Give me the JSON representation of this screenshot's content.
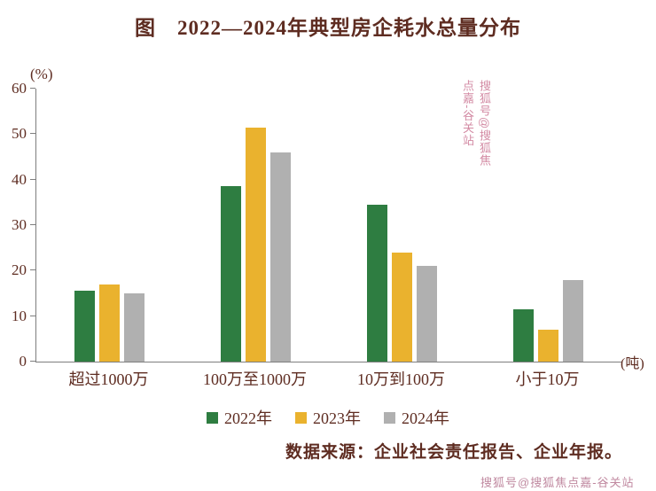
{
  "title": "图　2022—2024年典型房企耗水总量分布",
  "source": "数据来源：企业社会责任报告、企业年报。",
  "watermark_side": "搜狐号@搜狐焦点嘉-谷关站",
  "watermark_bottom": "搜狐号@搜狐焦点嘉-谷关站",
  "chart_data": {
    "type": "bar",
    "categories": [
      "超过1000万",
      "100万至1000万",
      "10万到100万",
      "小于10万"
    ],
    "series": [
      {
        "name": "2022年",
        "color": "#2e7d41",
        "values": [
          15.5,
          38.5,
          34.5,
          11.5
        ]
      },
      {
        "name": "2023年",
        "color": "#eab22e",
        "values": [
          17,
          51.5,
          24,
          7
        ]
      },
      {
        "name": "2024年",
        "color": "#b0b0b0",
        "values": [
          15,
          46,
          21,
          18
        ]
      }
    ],
    "ylabel": "(%)",
    "xlabel": "(吨)",
    "ylim": [
      0,
      60
    ],
    "yticks": [
      0,
      10,
      20,
      30,
      40,
      50,
      60
    ],
    "grid": false,
    "legend_position": "bottom"
  }
}
